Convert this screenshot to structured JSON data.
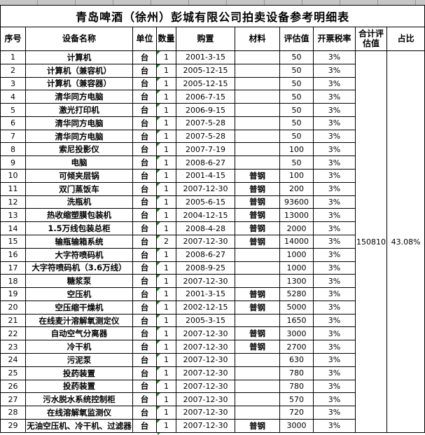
{
  "sheet": {
    "title": "青岛啤酒（徐州）彭城有限公司拍卖设备参考明细表"
  },
  "colors": {
    "border": "#000000",
    "gridline_strip": "#c6c6c6",
    "error_triangle_green": "#1e7b1e",
    "background": "#ffffff"
  },
  "icons": {
    "error_indicator": "green-corner-triangle"
  },
  "table": {
    "headers": [
      "序号",
      "设备名称",
      "单位",
      "数量",
      "购置",
      "材料",
      "评估值",
      "开票税率",
      "合计评估值",
      "占比"
    ],
    "summary": {
      "total_assessed_value": "150810",
      "share_percent": "43.08%"
    },
    "rows": [
      {
        "no": "1",
        "name": "计算机",
        "unit": "台",
        "qty": "1",
        "date": "2001-3-15",
        "material": "",
        "value": "50",
        "rate": "3%"
      },
      {
        "no": "2",
        "name": "计算机（兼容机）",
        "unit": "台",
        "qty": "1",
        "date": "2005-12-15",
        "material": "",
        "value": "50",
        "rate": "3%"
      },
      {
        "no": "3",
        "name": "计算机（兼容器）",
        "unit": "台",
        "qty": "1",
        "date": "2005-12-15",
        "material": "",
        "value": "50",
        "rate": "3%"
      },
      {
        "no": "4",
        "name": "清华同方电脑",
        "unit": "台",
        "qty": "1",
        "date": "2006-7-15",
        "material": "",
        "value": "50",
        "rate": "3%"
      },
      {
        "no": "5",
        "name": "激光打印机",
        "unit": "台",
        "qty": "1",
        "date": "2006-9-15",
        "material": "",
        "value": "50",
        "rate": "3%"
      },
      {
        "no": "6",
        "name": "清华同方电脑",
        "unit": "台",
        "qty": "1",
        "date": "2007-5-28",
        "material": "",
        "value": "50",
        "rate": "3%"
      },
      {
        "no": "7",
        "name": "清华同方电脑",
        "unit": "台",
        "qty": "1",
        "date": "2007-5-28",
        "material": "",
        "value": "50",
        "rate": "3%"
      },
      {
        "no": "8",
        "name": "索尼投影仪",
        "unit": "台",
        "qty": "1",
        "date": "2007-7-19",
        "material": "",
        "value": "100",
        "rate": "3%"
      },
      {
        "no": "9",
        "name": "电脑",
        "unit": "台",
        "qty": "1",
        "date": "2008-6-27",
        "material": "",
        "value": "50",
        "rate": "3%"
      },
      {
        "no": "10",
        "name": "可倾夹层锅",
        "unit": "台",
        "qty": "1",
        "date": "2001-4-15",
        "material": "普钢",
        "value": "100",
        "rate": "3%"
      },
      {
        "no": "11",
        "name": "双门蒸饭车",
        "unit": "台",
        "qty": "1",
        "date": "2007-12-30",
        "material": "普钢",
        "value": "200",
        "rate": "3%"
      },
      {
        "no": "12",
        "name": "洗瓶机",
        "unit": "台",
        "qty": "1",
        "date": "2005-6-15",
        "material": "普钢",
        "value": "93600",
        "rate": "3%"
      },
      {
        "no": "13",
        "name": "热收缩塑膜包装机",
        "unit": "台",
        "qty": "1",
        "date": "2004-12-15",
        "material": "普钢",
        "value": "13000",
        "rate": "3%"
      },
      {
        "no": "14",
        "name": "1.5万线包装总柜",
        "unit": "台",
        "qty": "1",
        "date": "2008-4-28",
        "material": "普钢",
        "value": "2000",
        "rate": "3%"
      },
      {
        "no": "15",
        "name": "输瓶输箱系统",
        "unit": "台",
        "qty": "2",
        "date": "2007-12-30",
        "material": "普钢",
        "value": "14000",
        "rate": "3%"
      },
      {
        "no": "16",
        "name": "大字符喷码机",
        "unit": "台",
        "qty": "1",
        "date": "2008-6-27",
        "material": "",
        "value": "1000",
        "rate": "3%"
      },
      {
        "no": "17",
        "name": "大字符喷码机（3.6万线）",
        "unit": "台",
        "qty": "1",
        "date": "2008-9-25",
        "material": "",
        "value": "1000",
        "rate": "3%"
      },
      {
        "no": "18",
        "name": "糖浆泵",
        "unit": "台",
        "qty": "1",
        "date": "2007-12-30",
        "material": "",
        "value": "1300",
        "rate": "3%"
      },
      {
        "no": "19",
        "name": "空压机",
        "unit": "台",
        "qty": "1",
        "date": "2001-3-15",
        "material": "普钢",
        "value": "5280",
        "rate": "3%"
      },
      {
        "no": "20",
        "name": "空压缩干燥机",
        "unit": "台",
        "qty": "1",
        "date": "2002-12-15",
        "material": "普钢",
        "value": "5000",
        "rate": "3%"
      },
      {
        "no": "21",
        "name": "在线麦汁溶解氧测定仪",
        "unit": "台",
        "qty": "1",
        "date": "2005-3-15",
        "material": "",
        "value": "1650",
        "rate": "3%"
      },
      {
        "no": "22",
        "name": "自动空气分离器",
        "unit": "台",
        "qty": "1",
        "date": "2007-12-30",
        "material": "普钢",
        "value": "3000",
        "rate": "3%"
      },
      {
        "no": "23",
        "name": "冷干机",
        "unit": "台",
        "qty": "1",
        "date": "2007-12-30",
        "material": "普钢",
        "value": "2700",
        "rate": "3%"
      },
      {
        "no": "24",
        "name": "污泥泵",
        "unit": "台",
        "qty": "1",
        "date": "2007-12-30",
        "material": "",
        "value": "630",
        "rate": "3%"
      },
      {
        "no": "25",
        "name": "投药装置",
        "unit": "台",
        "qty": "1",
        "date": "2007-12-30",
        "material": "",
        "value": "780",
        "rate": "3%"
      },
      {
        "no": "26",
        "name": "投药装置",
        "unit": "台",
        "qty": "1",
        "date": "2007-12-30",
        "material": "",
        "value": "780",
        "rate": "3%"
      },
      {
        "no": "27",
        "name": "污水脱水系统控制柜",
        "unit": "台",
        "qty": "1",
        "date": "2007-12-30",
        "material": "",
        "value": "570",
        "rate": "3%"
      },
      {
        "no": "28",
        "name": "在线溶解氧监测仪",
        "unit": "台",
        "qty": "1",
        "date": "2007-12-30",
        "material": "",
        "value": "720",
        "rate": "3%"
      },
      {
        "no": "29",
        "name": "无油空压机、冷干机、过滤器",
        "unit": "台",
        "qty": "1",
        "date": "2007-12-30",
        "material": "普钢",
        "value": "3000",
        "rate": "3%"
      }
    ]
  }
}
